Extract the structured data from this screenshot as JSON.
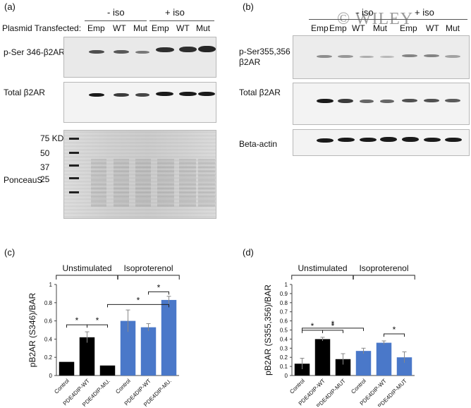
{
  "panel_a": {
    "tag": "(a)",
    "plasmid_label": "Plasmid Transfected:",
    "group_minus": "- iso",
    "group_plus": "+ iso",
    "lanes": [
      "Emp",
      "WT",
      "Mut",
      "Emp",
      "WT",
      "Mut"
    ],
    "rows": [
      "p-Ser 346-β2AR",
      "Total β2AR",
      "PonceauS"
    ],
    "markers": [
      "75 KD",
      "50",
      "37",
      "25"
    ]
  },
  "panel_b": {
    "tag": "(b)",
    "group_minus": "- iso",
    "group_plus": "+ iso",
    "lanes": [
      "Emp",
      "Emp",
      "WT",
      "Mut",
      "Emp",
      "WT",
      "Mut"
    ],
    "rows": [
      "p-Ser355,356",
      "β2AR",
      "Total β2AR",
      "Beta-actin"
    ],
    "watermark": "© WILEY"
  },
  "panel_c": {
    "tag": "(c)",
    "bracket_left": "Unstimulated",
    "bracket_right": "Isoproterenol",
    "star": "*",
    "colors": {
      "control": "#000000",
      "iso": "#4a78c9"
    }
  },
  "panel_d": {
    "tag": "(d)",
    "bracket_left": "Unstimulated",
    "bracket_right": "Isoproterenol",
    "star": "*",
    "colors": {
      "control": "#000000",
      "iso": "#4a78c9"
    }
  },
  "chart_data": [
    {
      "type": "bar",
      "panel": "c",
      "ylabel": "pB2AR (S346)/BAR",
      "ylim": [
        0,
        1
      ],
      "yticks": [
        "0",
        "0.2",
        "0.4",
        "0.6",
        "0.8",
        "1"
      ],
      "categories": [
        "Control",
        "PDE4DIP-WT",
        "PDE4DIP-MU.",
        "Control",
        "PDE4DIP-WT",
        "PDE4DIP-MU."
      ],
      "values": [
        0.15,
        0.42,
        0.11,
        0.6,
        0.53,
        0.83
      ],
      "errors": [
        0.0,
        0.06,
        0.0,
        0.12,
        0.04,
        0.04
      ],
      "groups": [
        "Unstimulated",
        "Unstimulated",
        "Unstimulated",
        "Isoproterenol",
        "Isoproterenol",
        "Isoproterenol"
      ],
      "significance": [
        [
          0,
          1
        ],
        [
          1,
          2
        ],
        [
          2,
          5
        ],
        [
          4,
          5
        ]
      ]
    },
    {
      "type": "bar",
      "panel": "d",
      "ylabel": "pB2AR (S355,356)/BAR",
      "ylim": [
        0,
        1
      ],
      "yticks": [
        "0",
        "0.1",
        "0.2",
        "0.3",
        "0.4",
        "0.5",
        "0.6",
        "0.7",
        "0.8",
        "0.9",
        "1"
      ],
      "categories": [
        "Control",
        "PDE4DIP-WT",
        "PDE4DIP-MUT",
        "Control",
        "PDE4DIP-WT",
        "PDE4DIP-MUT"
      ],
      "values": [
        0.13,
        0.4,
        0.18,
        0.27,
        0.36,
        0.2
      ],
      "errors": [
        0.06,
        0.02,
        0.06,
        0.03,
        0.02,
        0.06
      ],
      "groups": [
        "Unstimulated",
        "Unstimulated",
        "Unstimulated",
        "Isoproterenol",
        "Isoproterenol",
        "Isoproterenol"
      ],
      "significance": [
        [
          0,
          1
        ],
        [
          1,
          2
        ],
        [
          0,
          3
        ],
        [
          4,
          5
        ]
      ]
    }
  ]
}
